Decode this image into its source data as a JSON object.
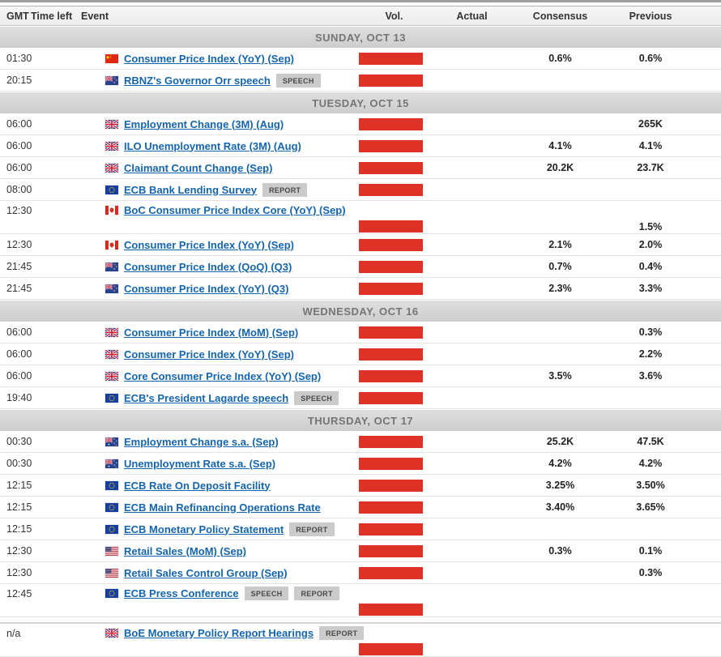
{
  "header": {
    "columns": [
      "GMT",
      "Time left",
      "Event",
      "Vol.",
      "Actual",
      "Consensus",
      "Previous"
    ]
  },
  "colors": {
    "volatility_high": "#de3226",
    "event_link": "#1565ad",
    "day_band_text": "#757575"
  },
  "flags": {
    "CN": "china",
    "NZ": "new-zealand",
    "GB": "united-kingdom",
    "EU": "european-union",
    "CA": "canada",
    "AU": "australia",
    "US": "united-states"
  },
  "sections": [
    {
      "label": "SUNDAY, OCT 13",
      "rows": [
        {
          "gmt": "01:30",
          "country": "CN",
          "event": "Consumer Price Index (YoY) (Sep)",
          "badges": [],
          "volatility": "high",
          "actual": "",
          "consensus": "0.6%",
          "previous": "0.6%",
          "tall": false
        },
        {
          "gmt": "20:15",
          "country": "NZ",
          "event": "RBNZ's Governor Orr speech",
          "badges": [
            "SPEECH"
          ],
          "volatility": "high",
          "actual": "",
          "consensus": "",
          "previous": "",
          "tall": false
        }
      ]
    },
    {
      "label": "TUESDAY, OCT 15",
      "rows": [
        {
          "gmt": "06:00",
          "country": "GB",
          "event": "Employment Change (3M) (Aug)",
          "badges": [],
          "volatility": "high",
          "actual": "",
          "consensus": "",
          "previous": "265K",
          "tall": false
        },
        {
          "gmt": "06:00",
          "country": "GB",
          "event": "ILO Unemployment Rate (3M) (Aug)",
          "badges": [],
          "volatility": "high",
          "actual": "",
          "consensus": "4.1%",
          "previous": "4.1%",
          "tall": false
        },
        {
          "gmt": "06:00",
          "country": "GB",
          "event": "Claimant Count Change (Sep)",
          "badges": [],
          "volatility": "high",
          "actual": "",
          "consensus": "20.2K",
          "previous": "23.7K",
          "tall": false
        },
        {
          "gmt": "08:00",
          "country": "EU",
          "event": "ECB Bank Lending Survey",
          "badges": [
            "REPORT"
          ],
          "volatility": "high",
          "actual": "",
          "consensus": "",
          "previous": "",
          "tall": false
        },
        {
          "gmt": "12:30",
          "country": "CA",
          "event": "BoC Consumer Price Index Core (YoY) (Sep)",
          "badges": [],
          "volatility": "high",
          "actual": "",
          "consensus": "",
          "previous": "1.5%",
          "tall": true
        },
        {
          "gmt": "12:30",
          "country": "CA",
          "event": "Consumer Price Index (YoY) (Sep)",
          "badges": [],
          "volatility": "high",
          "actual": "",
          "consensus": "2.1%",
          "previous": "2.0%",
          "tall": false
        },
        {
          "gmt": "21:45",
          "country": "NZ",
          "event": "Consumer Price Index (QoQ) (Q3)",
          "badges": [],
          "volatility": "high",
          "actual": "",
          "consensus": "0.7%",
          "previous": "0.4%",
          "tall": false
        },
        {
          "gmt": "21:45",
          "country": "NZ",
          "event": "Consumer Price Index (YoY) (Q3)",
          "badges": [],
          "volatility": "high",
          "actual": "",
          "consensus": "2.3%",
          "previous": "3.3%",
          "tall": false
        }
      ]
    },
    {
      "label": "WEDNESDAY, OCT 16",
      "rows": [
        {
          "gmt": "06:00",
          "country": "GB",
          "event": "Consumer Price Index (MoM) (Sep)",
          "badges": [],
          "volatility": "high",
          "actual": "",
          "consensus": "",
          "previous": "0.3%",
          "tall": false
        },
        {
          "gmt": "06:00",
          "country": "GB",
          "event": "Consumer Price Index (YoY) (Sep)",
          "badges": [],
          "volatility": "high",
          "actual": "",
          "consensus": "",
          "previous": "2.2%",
          "tall": false
        },
        {
          "gmt": "06:00",
          "country": "GB",
          "event": "Core Consumer Price Index (YoY) (Sep)",
          "badges": [],
          "volatility": "high",
          "actual": "",
          "consensus": "3.5%",
          "previous": "3.6%",
          "tall": false
        },
        {
          "gmt": "19:40",
          "country": "EU",
          "event": "ECB's President Lagarde speech",
          "badges": [
            "SPEECH"
          ],
          "volatility": "high",
          "actual": "",
          "consensus": "",
          "previous": "",
          "tall": false
        }
      ]
    },
    {
      "label": "THURSDAY, OCT 17",
      "rows": [
        {
          "gmt": "00:30",
          "country": "AU",
          "event": "Employment Change s.a. (Sep)",
          "badges": [],
          "volatility": "high",
          "actual": "",
          "consensus": "25.2K",
          "previous": "47.5K",
          "tall": false
        },
        {
          "gmt": "00:30",
          "country": "AU",
          "event": "Unemployment Rate s.a. (Sep)",
          "badges": [],
          "volatility": "high",
          "actual": "",
          "consensus": "4.2%",
          "previous": "4.2%",
          "tall": false
        },
        {
          "gmt": "12:15",
          "country": "EU",
          "event": "ECB Rate On Deposit Facility",
          "badges": [],
          "volatility": "high",
          "actual": "",
          "consensus": "3.25%",
          "previous": "3.50%",
          "tall": false
        },
        {
          "gmt": "12:15",
          "country": "EU",
          "event": "ECB Main Refinancing Operations Rate",
          "badges": [],
          "volatility": "high",
          "actual": "",
          "consensus": "3.40%",
          "previous": "3.65%",
          "tall": false
        },
        {
          "gmt": "12:15",
          "country": "EU",
          "event": "ECB Monetary Policy Statement",
          "badges": [
            "REPORT"
          ],
          "volatility": "high",
          "actual": "",
          "consensus": "",
          "previous": "",
          "tall": false
        },
        {
          "gmt": "12:30",
          "country": "US",
          "event": "Retail Sales (MoM) (Sep)",
          "badges": [],
          "volatility": "high",
          "actual": "",
          "consensus": "0.3%",
          "previous": "0.1%",
          "tall": false
        },
        {
          "gmt": "12:30",
          "country": "US",
          "event": "Retail Sales Control Group (Sep)",
          "badges": [],
          "volatility": "high",
          "actual": "",
          "consensus": "",
          "previous": "0.3%",
          "tall": false
        },
        {
          "gmt": "12:45",
          "country": "EU",
          "event": "ECB Press Conference",
          "badges": [
            "SPEECH",
            "REPORT"
          ],
          "volatility": "high",
          "actual": "",
          "consensus": "",
          "previous": "",
          "tall": true
        },
        {
          "gmt": "n/a",
          "country": "GB",
          "event": "BoE Monetary Policy Report Hearings",
          "badges": [
            "REPORT"
          ],
          "volatility": "high",
          "actual": "",
          "consensus": "",
          "previous": "",
          "tall": true,
          "gap_before": true
        }
      ]
    }
  ]
}
